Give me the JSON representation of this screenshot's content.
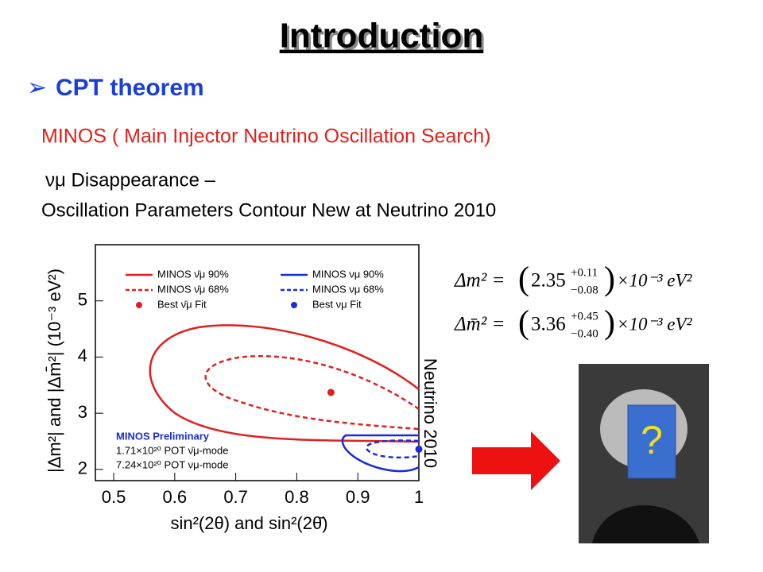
{
  "title": "Introduction",
  "bullet": "CPT theorem",
  "subtitle": "MINOS ( Main Injector Neutrino Oscillation Search)",
  "heading_lines": [
    "νμ Disappearance –",
    "Oscillation Parameters Contour New at Neutrino 2010"
  ],
  "chart_data": {
    "type": "contour",
    "xlabel": "sin²(2θ) and sin²(2θ̄)",
    "ylabel": "|Δm²| and |Δm̄²| (10⁻³ eV²)",
    "xlim": [
      0.47,
      1.0
    ],
    "ylim": [
      1.8,
      6.0
    ],
    "xticks": [
      0.5,
      0.6,
      0.7,
      0.8,
      0.9,
      1
    ],
    "yticks": [
      2,
      3,
      4,
      5
    ],
    "contours": [
      {
        "name": "MINOS ν̄μ 90%",
        "color": "#e02020",
        "dashed": false
      },
      {
        "name": "MINOS ν̄μ 68%",
        "color": "#e02020",
        "dashed": true
      },
      {
        "name": "MINOS νμ 90%",
        "color": "#1a2bd9",
        "dashed": false
      },
      {
        "name": "MINOS νμ 68%",
        "color": "#1a2bd9",
        "dashed": true
      }
    ],
    "series": [
      {
        "name": "Best ν̄μ Fit",
        "color": "#e02020",
        "x": [
          0.856
        ],
        "values": [
          3.37
        ]
      },
      {
        "name": "Best νμ Fit",
        "color": "#1a2bd9",
        "x": [
          1.0
        ],
        "values": [
          2.36
        ]
      }
    ],
    "annotations": [
      "MINOS Preliminary",
      "1.71×10²⁰ POT ν̄μ-mode",
      "7.24×10²⁰ POT νμ-mode"
    ],
    "side_label": "Neutrino 2010"
  },
  "equations": [
    {
      "lhs": "Δm² =",
      "value": "2.35",
      "plus": "+0.11",
      "minus": "−0.08",
      "unit": "×10⁻³ eV²"
    },
    {
      "lhs": "Δm̄² =",
      "value": "3.36",
      "plus": "+0.45",
      "minus": "−0.40",
      "unit": "×10⁻³ eV²"
    }
  ],
  "photo_mark": "?"
}
